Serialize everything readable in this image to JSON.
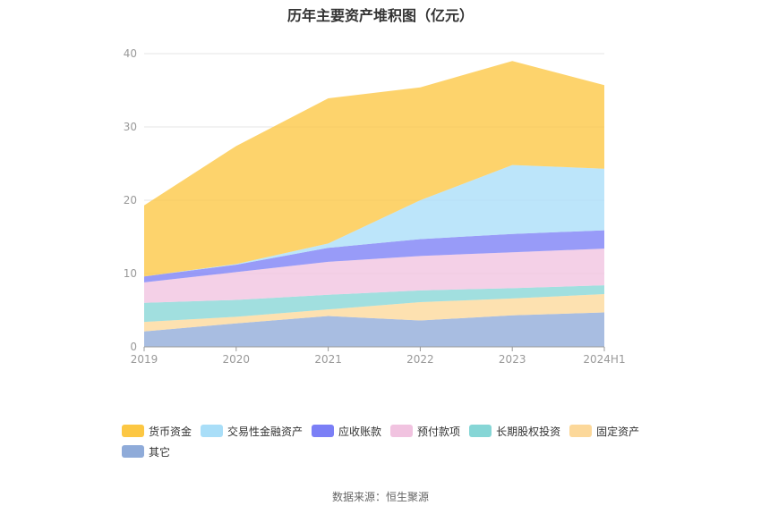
{
  "chart_data": {
    "type": "area",
    "stacked": true,
    "title": "历年主要资产堆积图（亿元）",
    "categories": [
      "2019",
      "2020",
      "2021",
      "2022",
      "2023",
      "2024H1"
    ],
    "ylim": [
      0,
      40
    ],
    "yticks": [
      0,
      10,
      20,
      30,
      40
    ],
    "xlabel": "",
    "ylabel": "",
    "grid": true,
    "legend_position": "bottom",
    "series": [
      {
        "name": "其它",
        "color": "#8fabd9",
        "values": [
          2.1,
          3.2,
          4.2,
          3.6,
          4.3,
          4.7
        ]
      },
      {
        "name": "固定资产",
        "color": "#fcd89a",
        "values": [
          1.3,
          0.9,
          0.9,
          2.5,
          2.3,
          2.5
        ]
      },
      {
        "name": "长期股权投资",
        "color": "#86d6d6",
        "values": [
          2.6,
          2.3,
          2.0,
          1.6,
          1.4,
          1.2
        ]
      },
      {
        "name": "预付款项",
        "color": "#f1c3e0",
        "values": [
          2.8,
          3.8,
          4.5,
          4.7,
          4.9,
          5.0
        ]
      },
      {
        "name": "应收账款",
        "color": "#7b7ff6",
        "values": [
          0.8,
          1.0,
          1.9,
          2.3,
          2.5,
          2.5
        ]
      },
      {
        "name": "交易性金融资产",
        "color": "#a9def8",
        "values": [
          0.0,
          0.1,
          0.6,
          5.3,
          9.4,
          8.4
        ]
      },
      {
        "name": "货币资金",
        "color": "#fcc743",
        "values": [
          9.7,
          16.1,
          19.8,
          15.4,
          14.2,
          11.4
        ]
      }
    ]
  },
  "legend_order": [
    6,
    5,
    4,
    3,
    2,
    1,
    0
  ],
  "source": "数据来源：恒生聚源"
}
